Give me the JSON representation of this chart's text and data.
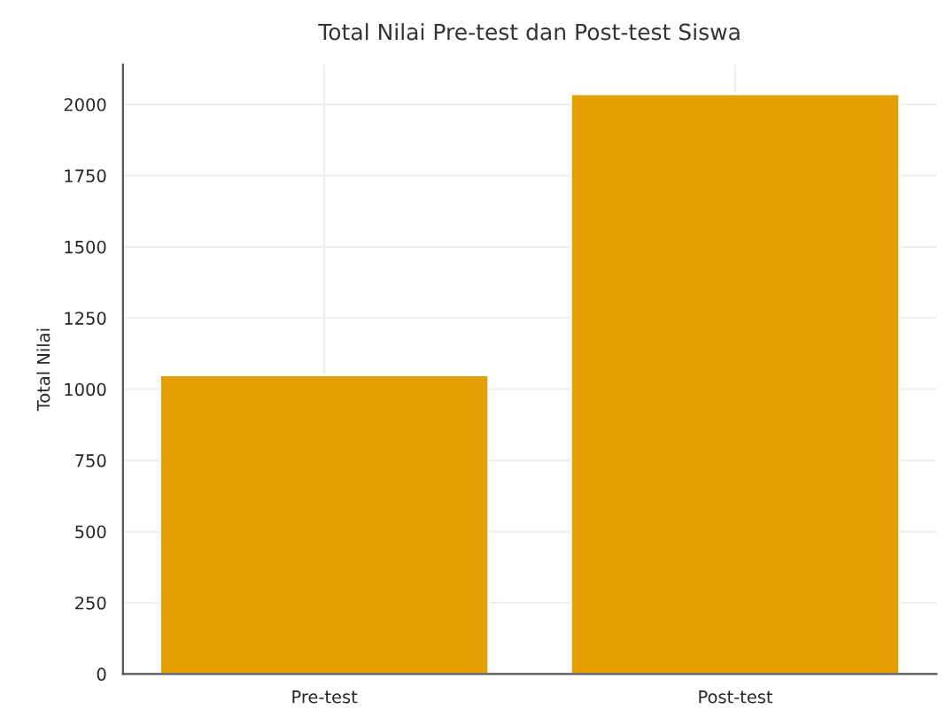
{
  "chart_data": {
    "type": "bar",
    "title": "Total Nilai Pre-test dan Post-test Siswa",
    "ylabel": "Total Nilai",
    "categories": [
      "Pre-test",
      "Post-test"
    ],
    "values": [
      1050,
      2037
    ],
    "color": "#e39f00",
    "ylim": [
      0,
      2140
    ],
    "yticks": [
      0,
      250,
      500,
      750,
      1000,
      1250,
      1500,
      1750,
      2000
    ],
    "grid": true
  }
}
